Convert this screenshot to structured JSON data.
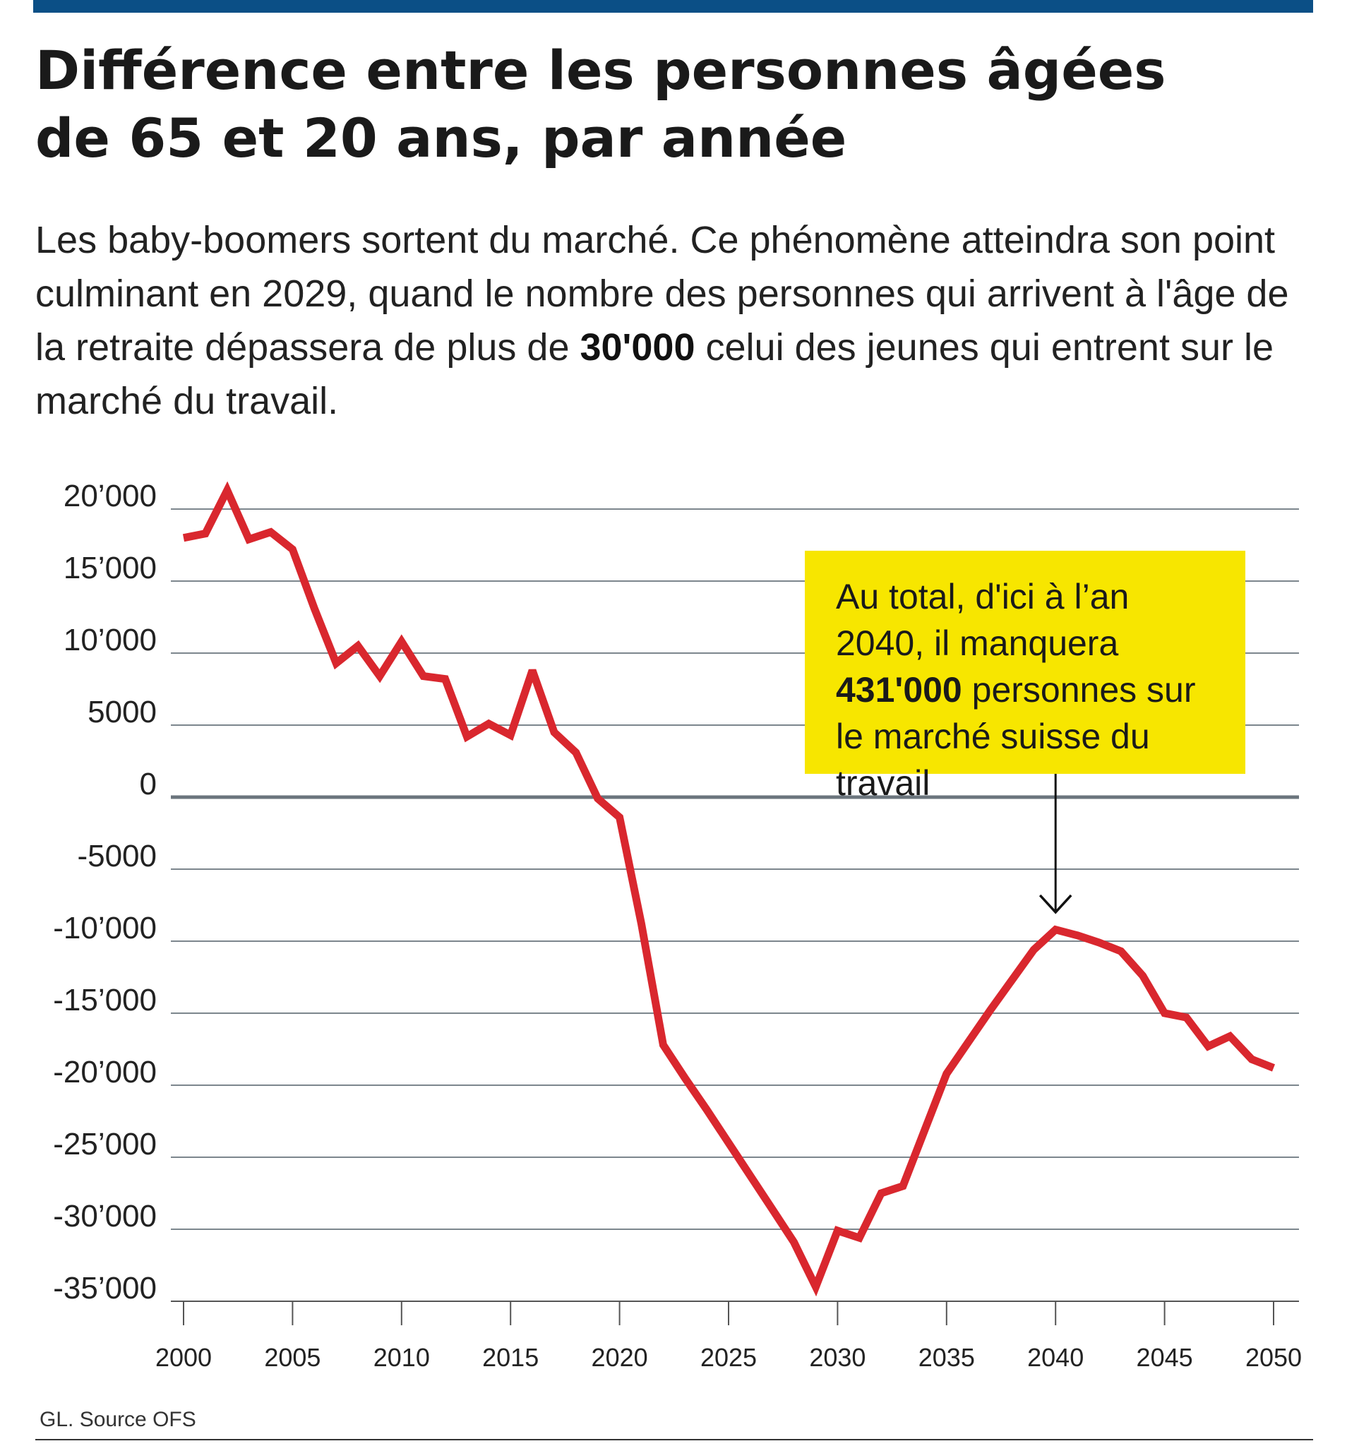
{
  "title_line1": "Différence entre les personnes âgées",
  "title_line2": "de 65 et 20 ans, par année",
  "subtitle": {
    "part1": "Les baby-boomers sortent du marché. Ce phénomène atteindra son point culminant en 2029, quand le nombre des personnes qui arrivent à l'âge de la retraite dépassera de plus de ",
    "bold": "30'000",
    "part2": " celui des jeunes qui entrent sur le marché du travail."
  },
  "callout": {
    "part1": "Au total, d'ici à l’an 2040, il manquera ",
    "bold": "431'000",
    "part2": " personnes sur le marché suisse du travail"
  },
  "source": "GL. Source OFS",
  "colors": {
    "line": "#d9272e",
    "callout": "#f7e600",
    "topbar": "#0b4f86"
  },
  "chart_data": {
    "type": "line",
    "x": [
      2000,
      2001,
      2002,
      2003,
      2004,
      2005,
      2006,
      2007,
      2008,
      2009,
      2010,
      2011,
      2012,
      2013,
      2014,
      2015,
      2016,
      2017,
      2018,
      2019,
      2020,
      2021,
      2022,
      2023,
      2024,
      2025,
      2026,
      2027,
      2028,
      2029,
      2030,
      2031,
      2032,
      2033,
      2034,
      2035,
      2036,
      2037,
      2038,
      2039,
      2040,
      2041,
      2042,
      2043,
      2044,
      2045,
      2046,
      2047,
      2048,
      2049,
      2050
    ],
    "series": [
      {
        "values": [
          18000,
          18300,
          21300,
          17900,
          18400,
          17200,
          13100,
          9300,
          10500,
          8400,
          10800,
          8400,
          8200,
          4200,
          5100,
          4300,
          8800,
          4500,
          3100,
          -100,
          -1400,
          -8800,
          -17200,
          -19500,
          -21700,
          -24000,
          -26300,
          -28600,
          -30900,
          -34000,
          -30100,
          -30600,
          -27500,
          -27000,
          -23100,
          -19200,
          -17000,
          -14800,
          -12700,
          -10600,
          -9200,
          -9600,
          -10100,
          -10700,
          -12400,
          -15000,
          -15300,
          -17300,
          -16600,
          -18200,
          -18800
        ]
      }
    ],
    "ylim": [
      -36000,
      21000
    ],
    "yticks": [
      20000,
      15000,
      10000,
      5000,
      0,
      -5000,
      -10000,
      -15000,
      -20000,
      -25000,
      -30000,
      -35000
    ],
    "ytick_labels": [
      "20’000",
      "15’000",
      "10’000",
      "5000",
      "0",
      "-5000",
      "-10’000",
      "-15’000",
      "-20’000",
      "-25’000",
      "-30’000",
      "-35’000"
    ],
    "xticks": [
      2000,
      2005,
      2010,
      2015,
      2020,
      2025,
      2030,
      2035,
      2040,
      2045,
      2050
    ],
    "xtick_labels": [
      "2000",
      "2005",
      "2010",
      "2015",
      "2020",
      "2025",
      "2030",
      "2035",
      "2040",
      "2045",
      "2050"
    ],
    "annotation_x": 2040,
    "grid": true,
    "xlabel": "",
    "ylabel": ""
  }
}
